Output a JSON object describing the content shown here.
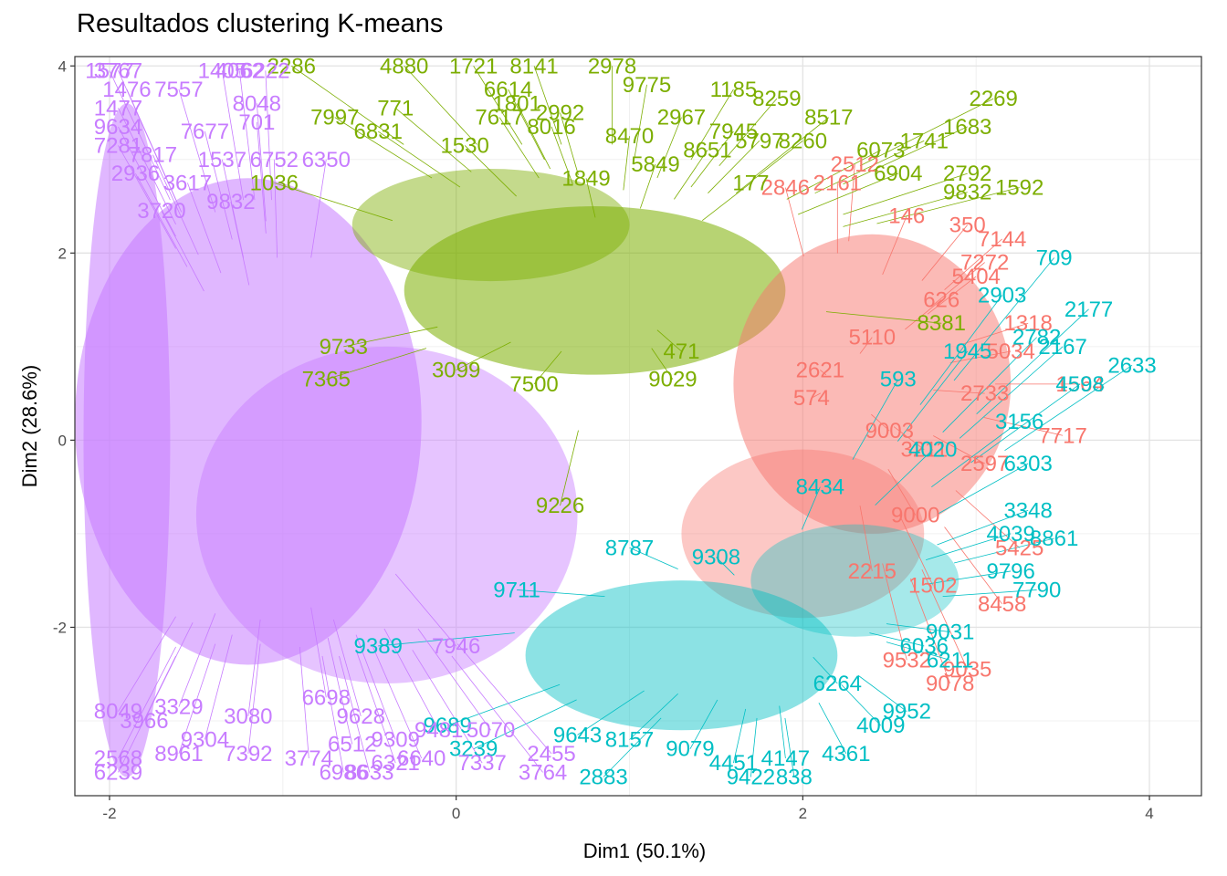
{
  "chart_data": {
    "type": "scatter",
    "title": "Resultados clustering K-means",
    "xlabel": "Dim1 (50.1%)",
    "ylabel": "Dim2 (28.6%)",
    "xlim": [
      -2.2,
      4.3
    ],
    "ylim": [
      -3.8,
      4.1
    ],
    "xticks": [
      -2,
      0,
      2,
      4
    ],
    "yticks": [
      -2,
      0,
      2,
      4
    ],
    "grid": true,
    "legend": "none",
    "clusters": [
      {
        "color": "#F8766D",
        "points": [
          {
            "x": 2.6,
            "y": 2.4,
            "label": "146"
          },
          {
            "x": 2.95,
            "y": 2.3,
            "label": "350"
          },
          {
            "x": 3.15,
            "y": 2.15,
            "label": "7144"
          },
          {
            "x": 3.05,
            "y": 1.9,
            "label": "7272"
          },
          {
            "x": 3.0,
            "y": 1.75,
            "label": "5404"
          },
          {
            "x": 3.3,
            "y": 1.25,
            "label": "1318"
          },
          {
            "x": 3.2,
            "y": 0.95,
            "label": "5034"
          },
          {
            "x": 3.6,
            "y": 0.6,
            "label": "1564"
          },
          {
            "x": 3.5,
            "y": 0.05,
            "label": "7717"
          },
          {
            "x": 3.25,
            "y": -1.15,
            "label": "5425"
          },
          {
            "x": 3.15,
            "y": -1.75,
            "label": "8458"
          },
          {
            "x": 2.95,
            "y": -2.45,
            "label": "9035"
          },
          {
            "x": 2.85,
            "y": -2.6,
            "label": "9078"
          },
          {
            "x": 2.6,
            "y": -2.35,
            "label": "9532"
          },
          {
            "x": 2.3,
            "y": 2.95,
            "label": "2512"
          },
          {
            "x": 2.2,
            "y": 2.75,
            "label": "2161"
          },
          {
            "x": 2.1,
            "y": 0.75,
            "label": "2621"
          },
          {
            "x": 2.05,
            "y": 0.45,
            "label": "574"
          },
          {
            "x": 3.05,
            "y": 0.5,
            "label": "2733"
          },
          {
            "x": 2.5,
            "y": 0.1,
            "label": "9003"
          },
          {
            "x": 2.7,
            "y": -0.1,
            "label": "3211"
          },
          {
            "x": 3.05,
            "y": -0.25,
            "label": "2597"
          },
          {
            "x": 2.65,
            "y": -0.8,
            "label": "9000"
          },
          {
            "x": 2.4,
            "y": -1.4,
            "label": "2215"
          },
          {
            "x": 2.75,
            "y": -1.55,
            "label": "1502"
          },
          {
            "x": 1.9,
            "y": 2.7,
            "label": "2846"
          },
          {
            "x": 2.8,
            "y": 1.5,
            "label": "626"
          },
          {
            "x": 2.4,
            "y": 1.1,
            "label": "5110"
          }
        ]
      },
      {
        "color": "#7CAE00",
        "points": [
          {
            "x": 3.1,
            "y": 3.65,
            "label": "2269"
          },
          {
            "x": 2.95,
            "y": 3.35,
            "label": "1683"
          },
          {
            "x": 2.7,
            "y": 3.2,
            "label": "1741"
          },
          {
            "x": 2.45,
            "y": 3.1,
            "label": "6073"
          },
          {
            "x": 2.55,
            "y": 2.85,
            "label": "6904"
          },
          {
            "x": 2.95,
            "y": 2.85,
            "label": "2792"
          },
          {
            "x": 3.25,
            "y": 2.7,
            "label": "1592"
          },
          {
            "x": 2.95,
            "y": 2.65,
            "label": "9832"
          },
          {
            "x": 2.0,
            "y": 3.2,
            "label": "8260"
          },
          {
            "x": 2.15,
            "y": 3.45,
            "label": "8517"
          },
          {
            "x": 1.85,
            "y": 3.65,
            "label": "8259"
          },
          {
            "x": 1.6,
            "y": 3.75,
            "label": "1185"
          },
          {
            "x": 1.1,
            "y": 3.8,
            "label": "9775"
          },
          {
            "x": 0.9,
            "y": 4.0,
            "label": "2978"
          },
          {
            "x": 0.45,
            "y": 4.0,
            "label": "8141"
          },
          {
            "x": 0.1,
            "y": 4.0,
            "label": "1721"
          },
          {
            "x": 0.3,
            "y": 3.75,
            "label": "6614"
          },
          {
            "x": 0.35,
            "y": 3.6,
            "label": "1801"
          },
          {
            "x": 0.6,
            "y": 3.5,
            "label": "2992"
          },
          {
            "x": 0.55,
            "y": 3.35,
            "label": "8016"
          },
          {
            "x": 1.0,
            "y": 3.25,
            "label": "8470"
          },
          {
            "x": 1.3,
            "y": 3.45,
            "label": "2967"
          },
          {
            "x": 1.6,
            "y": 3.3,
            "label": "7945"
          },
          {
            "x": 1.75,
            "y": 3.2,
            "label": "5797"
          },
          {
            "x": 1.45,
            "y": 3.1,
            "label": "8651"
          },
          {
            "x": 1.7,
            "y": 2.75,
            "label": "177"
          },
          {
            "x": 0.25,
            "y": 3.45,
            "label": "7617"
          },
          {
            "x": -0.35,
            "y": 3.55,
            "label": "771"
          },
          {
            "x": -0.7,
            "y": 3.45,
            "label": "7997"
          },
          {
            "x": -0.45,
            "y": 3.3,
            "label": "6831"
          },
          {
            "x": -0.3,
            "y": 4.0,
            "label": "4880"
          },
          {
            "x": -0.95,
            "y": 4.0,
            "label": "2286"
          },
          {
            "x": 2.8,
            "y": 1.25,
            "label": "8381"
          },
          {
            "x": 1.3,
            "y": 0.95,
            "label": "471"
          },
          {
            "x": 0.05,
            "y": 3.15,
            "label": "1530"
          },
          {
            "x": 1.15,
            "y": 2.95,
            "label": "5849"
          },
          {
            "x": 0.0,
            "y": 0.75,
            "label": "3099"
          },
          {
            "x": 1.25,
            "y": 0.65,
            "label": "9029"
          },
          {
            "x": -0.65,
            "y": 1.0,
            "label": "9733"
          },
          {
            "x": -0.75,
            "y": 0.65,
            "label": "7365"
          },
          {
            "x": 0.6,
            "y": -0.7,
            "label": "9226"
          },
          {
            "x": 0.45,
            "y": 0.6,
            "label": "7500"
          },
          {
            "x": -1.05,
            "y": 2.75,
            "label": "1036"
          },
          {
            "x": 0.75,
            "y": 2.8,
            "label": "1849"
          }
        ]
      },
      {
        "color": "#00BFC4",
        "points": [
          {
            "x": 3.45,
            "y": 1.95,
            "label": "709"
          },
          {
            "x": 3.15,
            "y": 1.55,
            "label": "2903"
          },
          {
            "x": 3.65,
            "y": 1.4,
            "label": "2177"
          },
          {
            "x": 3.35,
            "y": 1.1,
            "label": "2782"
          },
          {
            "x": 3.5,
            "y": 1.0,
            "label": "2167"
          },
          {
            "x": 3.9,
            "y": 0.8,
            "label": "2633"
          },
          {
            "x": 3.6,
            "y": 0.6,
            "label": "4598"
          },
          {
            "x": 2.95,
            "y": 0.95,
            "label": "1945"
          },
          {
            "x": 3.25,
            "y": 0.2,
            "label": "3156"
          },
          {
            "x": 3.3,
            "y": -0.25,
            "label": "6303"
          },
          {
            "x": 3.3,
            "y": -0.75,
            "label": "3348"
          },
          {
            "x": 3.2,
            "y": -1.0,
            "label": "4039"
          },
          {
            "x": 3.45,
            "y": -1.05,
            "label": "8861"
          },
          {
            "x": 3.2,
            "y": -1.4,
            "label": "9796"
          },
          {
            "x": 3.35,
            "y": -1.6,
            "label": "7790"
          },
          {
            "x": 2.85,
            "y": -2.05,
            "label": "9031"
          },
          {
            "x": 2.7,
            "y": -2.2,
            "label": "6036"
          },
          {
            "x": 2.85,
            "y": -2.35,
            "label": "6211"
          },
          {
            "x": 2.6,
            "y": -2.9,
            "label": "9952"
          },
          {
            "x": 2.45,
            "y": -3.05,
            "label": "4009"
          },
          {
            "x": 2.25,
            "y": -3.35,
            "label": "4361"
          },
          {
            "x": 1.7,
            "y": -3.6,
            "label": "9422"
          },
          {
            "x": 1.95,
            "y": -3.6,
            "label": "838"
          },
          {
            "x": 1.6,
            "y": -3.45,
            "label": "4451"
          },
          {
            "x": 1.9,
            "y": -3.4,
            "label": "4147"
          },
          {
            "x": 1.35,
            "y": -3.3,
            "label": "9079"
          },
          {
            "x": 1.0,
            "y": -3.2,
            "label": "8157"
          },
          {
            "x": 0.85,
            "y": -3.6,
            "label": "2883"
          },
          {
            "x": 0.7,
            "y": -3.15,
            "label": "9643"
          },
          {
            "x": -0.05,
            "y": -3.05,
            "label": "9689"
          },
          {
            "x": 0.1,
            "y": -3.3,
            "label": "3239"
          },
          {
            "x": -0.45,
            "y": -2.2,
            "label": "9389"
          },
          {
            "x": 0.35,
            "y": -1.6,
            "label": "9711"
          },
          {
            "x": 2.1,
            "y": -0.5,
            "label": "8434"
          },
          {
            "x": 2.55,
            "y": 0.65,
            "label": "593"
          },
          {
            "x": 2.75,
            "y": -0.1,
            "label": "4020"
          },
          {
            "x": 2.2,
            "y": -2.6,
            "label": "6264"
          },
          {
            "x": 1.5,
            "y": -1.25,
            "label": "9308"
          },
          {
            "x": 1.0,
            "y": -1.15,
            "label": "8787"
          }
        ]
      },
      {
        "color": "#C77CFF",
        "points": [
          {
            "x": -2.0,
            "y": 3.95,
            "label": "1577"
          },
          {
            "x": -1.95,
            "y": 3.95,
            "label": "3767"
          },
          {
            "x": -1.9,
            "y": 3.75,
            "label": "1476"
          },
          {
            "x": -1.6,
            "y": 3.75,
            "label": "7557"
          },
          {
            "x": -1.95,
            "y": 3.55,
            "label": "1477"
          },
          {
            "x": -1.35,
            "y": 3.95,
            "label": "1405"
          },
          {
            "x": -1.25,
            "y": 3.95,
            "label": "4062"
          },
          {
            "x": -1.1,
            "y": 3.95,
            "label": "6222"
          },
          {
            "x": -1.15,
            "y": 3.6,
            "label": "8048"
          },
          {
            "x": -1.45,
            "y": 3.3,
            "label": "7677"
          },
          {
            "x": -1.15,
            "y": 3.4,
            "label": "701"
          },
          {
            "x": -1.95,
            "y": 3.35,
            "label": "9634"
          },
          {
            "x": -1.95,
            "y": 3.15,
            "label": "7281"
          },
          {
            "x": -1.75,
            "y": 3.05,
            "label": "7817"
          },
          {
            "x": -1.35,
            "y": 3.0,
            "label": "1537"
          },
          {
            "x": -1.05,
            "y": 3.0,
            "label": "6752"
          },
          {
            "x": -0.75,
            "y": 3.0,
            "label": "6350"
          },
          {
            "x": -1.85,
            "y": 2.85,
            "label": "2936"
          },
          {
            "x": -1.55,
            "y": 2.75,
            "label": "3617"
          },
          {
            "x": -1.3,
            "y": 2.55,
            "label": "9832"
          },
          {
            "x": -1.7,
            "y": 2.45,
            "label": "3720"
          },
          {
            "x": -1.95,
            "y": -3.55,
            "label": "6239"
          },
          {
            "x": -1.95,
            "y": -3.4,
            "label": "2568"
          },
          {
            "x": -1.6,
            "y": -3.35,
            "label": "8961"
          },
          {
            "x": -1.2,
            "y": -3.35,
            "label": "7392"
          },
          {
            "x": -0.85,
            "y": -3.4,
            "label": "3774"
          },
          {
            "x": -0.6,
            "y": -3.25,
            "label": "6512"
          },
          {
            "x": -0.65,
            "y": -3.55,
            "label": "6986"
          },
          {
            "x": -0.5,
            "y": -3.55,
            "label": "8633"
          },
          {
            "x": -0.35,
            "y": -3.45,
            "label": "6321"
          },
          {
            "x": -0.2,
            "y": -3.4,
            "label": "6640"
          },
          {
            "x": 0.15,
            "y": -3.45,
            "label": "7337"
          },
          {
            "x": 0.5,
            "y": -3.55,
            "label": "3764"
          },
          {
            "x": 0.55,
            "y": -3.35,
            "label": "2455"
          },
          {
            "x": -0.35,
            "y": -3.2,
            "label": "9309"
          },
          {
            "x": -1.8,
            "y": -3.0,
            "label": "3966"
          },
          {
            "x": -1.45,
            "y": -3.2,
            "label": "9304"
          },
          {
            "x": -1.2,
            "y": -2.95,
            "label": "3080"
          },
          {
            "x": -1.95,
            "y": -2.9,
            "label": "8049"
          },
          {
            "x": -1.6,
            "y": -2.85,
            "label": "3329"
          },
          {
            "x": -0.75,
            "y": -2.75,
            "label": "6698"
          },
          {
            "x": -0.55,
            "y": -2.95,
            "label": "9628"
          },
          {
            "x": 0.0,
            "y": -2.2,
            "label": "7946"
          },
          {
            "x": -0.1,
            "y": -3.1,
            "label": "9481"
          },
          {
            "x": 0.2,
            "y": -3.1,
            "label": "5070"
          }
        ]
      }
    ]
  }
}
